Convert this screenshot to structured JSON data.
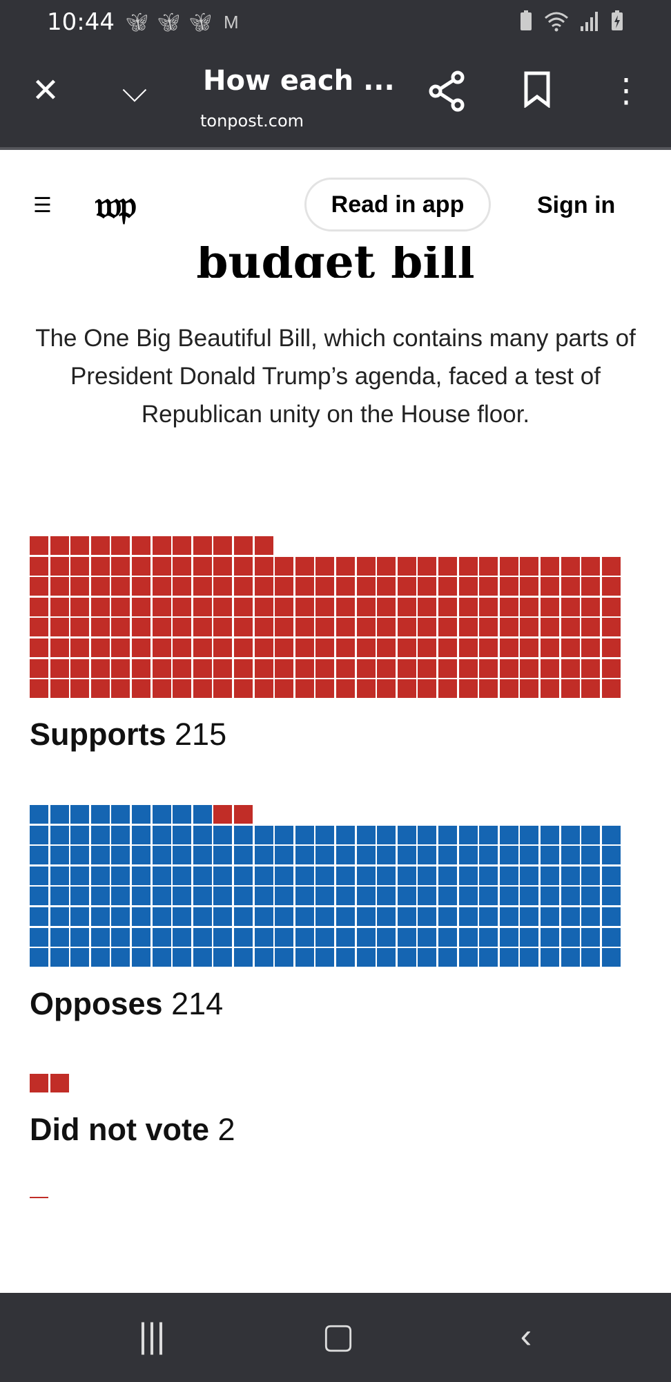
{
  "status_bar": {
    "time": "10:44",
    "notification_icons": [
      "butterfly-icon",
      "butterfly-icon",
      "butterfly-icon",
      "gmail-icon"
    ],
    "system_icons": [
      "battery-saver-icon",
      "wifi-icon",
      "signal-icon",
      "battery-charging-icon"
    ]
  },
  "toolbar": {
    "title": "How each ...",
    "url": "tonpost.com"
  },
  "header": {
    "read_in_app": "Read in app",
    "sign_in": "Sign in",
    "logo": "wp"
  },
  "article": {
    "headline_fragment": "budget bill",
    "dek": "The One Big Beautiful Bill, which contains many parts of President Donald Trump’s agenda, faced a test of Republican unity on the House floor."
  },
  "colors": {
    "red": "#c12d27",
    "blue": "#1565b2"
  },
  "chart_data": {
    "type": "waffle",
    "columns": 29,
    "groups": [
      {
        "label": "Supports",
        "total": "215",
        "segments": [
          {
            "color": "#c12d27",
            "count": 215
          }
        ]
      },
      {
        "label": "Opposes",
        "total": "214",
        "segments": [
          {
            "color": "#1565b2",
            "count": 212
          },
          {
            "color": "#c12d27",
            "count": 2
          }
        ]
      },
      {
        "label": "Did not vote",
        "total": "2",
        "segments": [
          {
            "color": "#c12d27",
            "count": 2
          }
        ]
      }
    ]
  }
}
